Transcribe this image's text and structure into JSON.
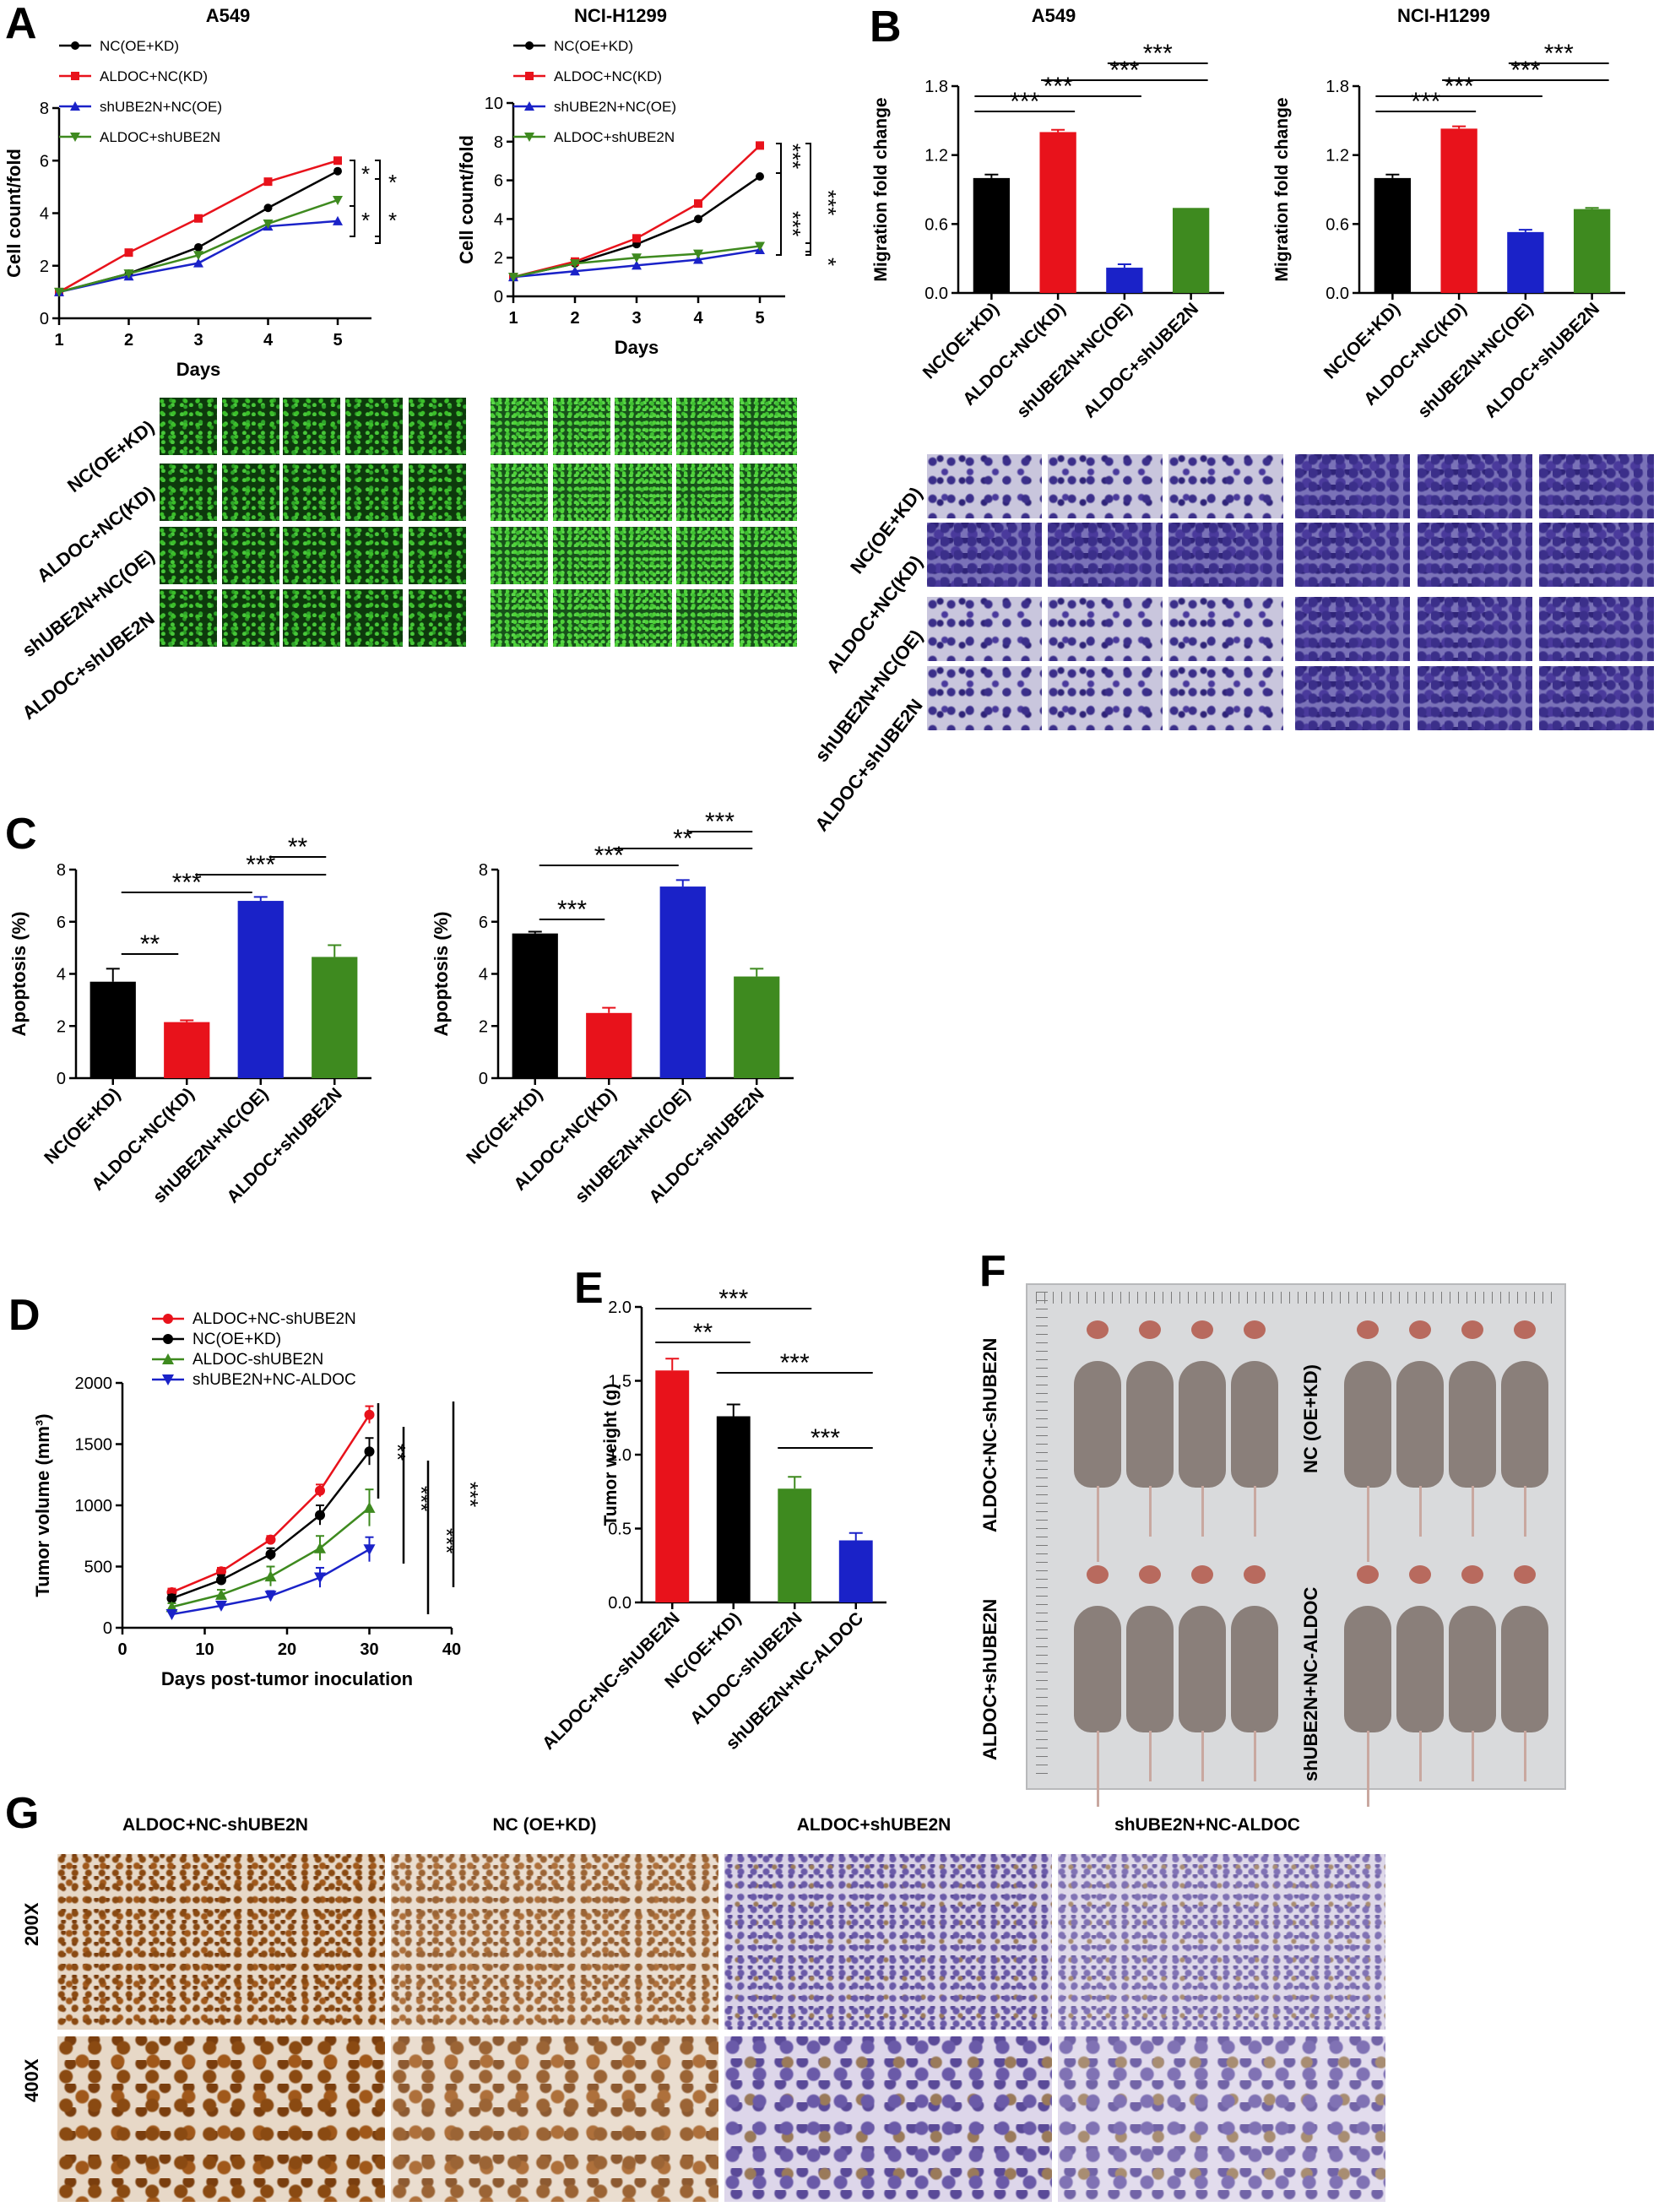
{
  "panel_letters": {
    "a": "A",
    "b": "B",
    "c": "C",
    "d": "D",
    "e": "E",
    "f": "F",
    "g": "G"
  },
  "cell_lines": {
    "a549": "A549",
    "h1299": "NCI-H1299"
  },
  "group_labels": [
    "NC(OE+KD)",
    "ALDOC+NC(KD)",
    "shUBE2N+NC(OE)",
    "ALDOC+shUBE2N"
  ],
  "mice_groups": {
    "g1": "ALDOC+NC-shUBE2N",
    "g2": "NC (OE+KD)",
    "g3": "ALDOC+shUBE2N",
    "g4": "shUBE2N+NC-ALDOC"
  },
  "ihc": {
    "cols": [
      "ALDOC+NC-shUBE2N",
      "NC (OE+KD)",
      "ALDOC+shUBE2N",
      "shUBE2N+NC-ALDOC"
    ],
    "rows": [
      "200X",
      "400X"
    ]
  },
  "colors": {
    "black": "#000000",
    "red": "#e8121b",
    "blue": "#1a22c8",
    "green": "#3e8a1f"
  },
  "chart_data": [
    {
      "id": "A1",
      "type": "line",
      "title": "A549",
      "xlabel": "Days",
      "ylabel": "Cell count/fold",
      "x": [
        1,
        2,
        3,
        4,
        5
      ],
      "xlim": [
        1,
        5
      ],
      "ylim": [
        0,
        8
      ],
      "yticks": [
        0,
        2,
        4,
        6,
        8
      ],
      "series": [
        {
          "name": "NC(OE+KD)",
          "color": "#000000",
          "marker": "circle",
          "values": [
            1.0,
            1.7,
            2.7,
            4.2,
            5.6
          ]
        },
        {
          "name": "ALDOC+NC(KD)",
          "color": "#e8121b",
          "marker": "square",
          "values": [
            1.0,
            2.5,
            3.8,
            5.2,
            6.0
          ]
        },
        {
          "name": "shUBE2N+NC(OE)",
          "color": "#1a22c8",
          "marker": "triangle-up",
          "values": [
            1.0,
            1.6,
            2.1,
            3.5,
            3.7
          ]
        },
        {
          "name": "ALDOC+shUBE2N",
          "color": "#3e8a1f",
          "marker": "triangle-down",
          "values": [
            1.0,
            1.7,
            2.4,
            3.6,
            4.5
          ]
        }
      ],
      "annotations": [
        "*",
        "*",
        "*",
        "*",
        "*"
      ]
    },
    {
      "id": "A2",
      "type": "line",
      "title": "NCI-H1299",
      "xlabel": "Days",
      "ylabel": "Cell count/fold",
      "x": [
        1,
        2,
        3,
        4,
        5
      ],
      "xlim": [
        1,
        5
      ],
      "ylim": [
        0,
        10
      ],
      "yticks": [
        0,
        2,
        4,
        6,
        8,
        10
      ],
      "series": [
        {
          "name": "NC(OE+KD)",
          "color": "#000000",
          "marker": "circle",
          "values": [
            1.0,
            1.7,
            2.7,
            4.0,
            6.2
          ]
        },
        {
          "name": "ALDOC+NC(KD)",
          "color": "#e8121b",
          "marker": "square",
          "values": [
            1.0,
            1.8,
            3.0,
            4.8,
            7.8
          ]
        },
        {
          "name": "shUBE2N+NC(OE)",
          "color": "#1a22c8",
          "marker": "triangle-up",
          "values": [
            1.0,
            1.3,
            1.6,
            1.9,
            2.4
          ]
        },
        {
          "name": "ALDOC+shUBE2N",
          "color": "#3e8a1f",
          "marker": "triangle-down",
          "values": [
            1.0,
            1.7,
            2.0,
            2.2,
            2.6
          ]
        }
      ],
      "annotations": [
        "***",
        "***",
        "***",
        "*"
      ]
    },
    {
      "id": "B1",
      "type": "bar",
      "title": "A549",
      "ylabel": "Migration fold change",
      "categories": [
        "NC(OE+KD)",
        "ALDOC+NC(KD)",
        "shUBE2N+NC(OE)",
        "ALDOC+shUBE2N"
      ],
      "values": [
        1.0,
        1.4,
        0.22,
        0.74
      ],
      "errors": [
        0.03,
        0.02,
        0.03,
        0.0
      ],
      "colors": [
        "#000000",
        "#e8121b",
        "#1a22c8",
        "#3e8a1f"
      ],
      "ylim": [
        0,
        1.8
      ],
      "yticks": [
        "0.0",
        "0.6",
        "1.2",
        "1.8"
      ],
      "significance": [
        {
          "a": 0,
          "b": 1,
          "label": "***"
        },
        {
          "a": 0,
          "b": 2,
          "label": "***"
        },
        {
          "a": 1,
          "b": 3,
          "label": "***"
        },
        {
          "a": 2,
          "b": 3,
          "label": "***"
        }
      ]
    },
    {
      "id": "B2",
      "type": "bar",
      "title": "NCI-H1299",
      "ylabel": "Migration fold change",
      "categories": [
        "NC(OE+KD)",
        "ALDOC+NC(KD)",
        "shUBE2N+NC(OE)",
        "ALDOC+shUBE2N"
      ],
      "values": [
        1.0,
        1.43,
        0.53,
        0.73
      ],
      "errors": [
        0.03,
        0.02,
        0.02,
        0.01
      ],
      "colors": [
        "#000000",
        "#e8121b",
        "#1a22c8",
        "#3e8a1f"
      ],
      "ylim": [
        0,
        1.8
      ],
      "yticks": [
        "0.0",
        "0.6",
        "1.2",
        "1.8"
      ],
      "significance": [
        {
          "a": 0,
          "b": 1,
          "label": "***"
        },
        {
          "a": 0,
          "b": 2,
          "label": "***"
        },
        {
          "a": 1,
          "b": 3,
          "label": "***"
        },
        {
          "a": 2,
          "b": 3,
          "label": "***"
        }
      ]
    },
    {
      "id": "C1",
      "type": "bar",
      "ylabel": "Apoptosis (%)",
      "categories": [
        "NC(OE+KD)",
        "ALDOC+NC(KD)",
        "shUBE2N+NC(OE)",
        "ALDOC+shUBE2N"
      ],
      "values": [
        3.7,
        2.15,
        6.8,
        4.65
      ],
      "errors": [
        0.5,
        0.07,
        0.15,
        0.45
      ],
      "colors": [
        "#000000",
        "#e8121b",
        "#1a22c8",
        "#3e8a1f"
      ],
      "ylim": [
        0,
        8
      ],
      "yticks": [
        "0",
        "2",
        "4",
        "6",
        "8"
      ],
      "significance": [
        {
          "a": 0,
          "b": 1,
          "label": "**"
        },
        {
          "a": 0,
          "b": 2,
          "label": "***"
        },
        {
          "a": 1,
          "b": 3,
          "label": "***"
        },
        {
          "a": 2,
          "b": 3,
          "label": "**"
        }
      ]
    },
    {
      "id": "C2",
      "type": "bar",
      "ylabel": "Apoptosis (%)",
      "categories": [
        "NC(OE+KD)",
        "ALDOC+NC(KD)",
        "shUBE2N+NC(OE)",
        "ALDOC+shUBE2N"
      ],
      "values": [
        5.55,
        2.5,
        7.35,
        3.9
      ],
      "errors": [
        0.07,
        0.2,
        0.25,
        0.3
      ],
      "colors": [
        "#000000",
        "#e8121b",
        "#1a22c8",
        "#3e8a1f"
      ],
      "ylim": [
        0,
        8
      ],
      "yticks": [
        "0",
        "2",
        "4",
        "6",
        "8"
      ],
      "significance": [
        {
          "a": 0,
          "b": 1,
          "label": "***"
        },
        {
          "a": 0,
          "b": 2,
          "label": "***"
        },
        {
          "a": 1,
          "b": 3,
          "label": "**"
        },
        {
          "a": 2,
          "b": 3,
          "label": "***"
        }
      ]
    },
    {
      "id": "D",
      "type": "line",
      "xlabel": "Days post-tumor inoculation",
      "ylabel": "Tumor volume (mm³)",
      "x": [
        6,
        12,
        18,
        24,
        30
      ],
      "xlim": [
        0,
        40
      ],
      "xticks": [
        0,
        10,
        20,
        30,
        40
      ],
      "ylim": [
        0,
        2000
      ],
      "yticks": [
        0,
        500,
        1000,
        1500,
        2000
      ],
      "series": [
        {
          "name": "ALDOC+NC-shUBE2N",
          "color": "#e8121b",
          "marker": "circle",
          "values": [
            290,
            460,
            720,
            1120,
            1740
          ],
          "errors": [
            30,
            30,
            30,
            50,
            70
          ]
        },
        {
          "name": "NC(OE+KD)",
          "color": "#000000",
          "marker": "circle",
          "values": [
            240,
            390,
            600,
            920,
            1440
          ],
          "errors": [
            30,
            40,
            50,
            80,
            110
          ]
        },
        {
          "name": "ALDOC-shUBE2N",
          "color": "#3e8a1f",
          "marker": "triangle-up",
          "values": [
            170,
            270,
            420,
            650,
            980
          ],
          "errors": [
            30,
            40,
            80,
            100,
            150
          ]
        },
        {
          "name": "shUBE2N+NC-ALDOC",
          "color": "#1a22c8",
          "marker": "triangle-down",
          "values": [
            110,
            180,
            260,
            410,
            640
          ],
          "errors": [
            20,
            30,
            40,
            80,
            100
          ]
        }
      ],
      "annotations": [
        "**",
        "***",
        "***",
        "***"
      ]
    },
    {
      "id": "E",
      "type": "bar",
      "ylabel": "Tumor weight (g)",
      "categories": [
        "ALDOC+NC-shUBE2N",
        "NC(OE+KD)",
        "ALDOC-shUBE2N",
        "shUBE2N+NC-ALDOC"
      ],
      "values": [
        1.57,
        1.26,
        0.77,
        0.42
      ],
      "errors": [
        0.08,
        0.08,
        0.08,
        0.05
      ],
      "colors": [
        "#e8121b",
        "#000000",
        "#3e8a1f",
        "#1a22c8"
      ],
      "ylim": [
        0,
        2.0
      ],
      "yticks": [
        "0.0",
        "0.5",
        "1.0",
        "1.5",
        "2.0"
      ],
      "significance": [
        {
          "a": 0,
          "b": 1,
          "label": "**"
        },
        {
          "a": 0,
          "b": 2,
          "label": "***"
        },
        {
          "a": 1,
          "b": 3,
          "label": "***"
        },
        {
          "a": 2,
          "b": 3,
          "label": "***"
        }
      ]
    }
  ]
}
